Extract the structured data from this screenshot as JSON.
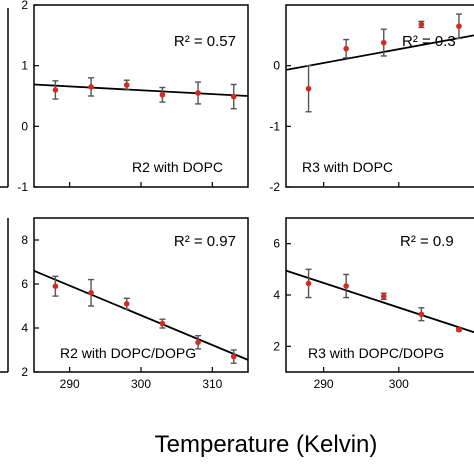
{
  "chart_data": [
    {
      "type": "scatter",
      "label": "R2 with DOPC",
      "r2_text": "R² = 0.57",
      "x": [
        288,
        293,
        298,
        303,
        308,
        313
      ],
      "y": [
        0.6,
        0.65,
        0.68,
        0.52,
        0.55,
        0.49
      ],
      "y_err": [
        0.15,
        0.15,
        0.08,
        0.12,
        0.18,
        0.2
      ],
      "fit": {
        "x": [
          285,
          315
        ],
        "y": [
          0.69,
          0.5
        ]
      },
      "xlim": [
        285,
        315
      ],
      "ylim": [
        -1,
        2
      ],
      "xticks": [
        290,
        300,
        310
      ],
      "yticks": [
        -1,
        0,
        1,
        2
      ],
      "show_xticklabels": false
    },
    {
      "type": "scatter",
      "label": "R3 with DOPC",
      "r2_text": "R² = 0.3",
      "x": [
        288,
        293,
        298,
        303,
        308
      ],
      "y": [
        -0.38,
        0.28,
        0.38,
        0.68,
        0.65
      ],
      "y_err": [
        0.38,
        0.15,
        0.22,
        0.05,
        0.2
      ],
      "fit": {
        "x": [
          285,
          310
        ],
        "y": [
          -0.07,
          0.5
        ]
      },
      "xlim": [
        285,
        310
      ],
      "ylim": [
        -2,
        1
      ],
      "xticks": [
        290,
        300
      ],
      "yticks": [
        -2,
        -1,
        0
      ],
      "show_xticklabels": false
    },
    {
      "type": "scatter",
      "label": "R2 with DOPC/DOPG",
      "r2_text": "R² = 0.97",
      "x": [
        288,
        293,
        298,
        303,
        308,
        313
      ],
      "y": [
        5.9,
        5.6,
        5.1,
        4.2,
        3.35,
        2.7
      ],
      "y_err": [
        0.45,
        0.6,
        0.25,
        0.2,
        0.3,
        0.3
      ],
      "fit": {
        "x": [
          285,
          315
        ],
        "y": [
          6.6,
          2.55
        ]
      },
      "xlim": [
        285,
        315
      ],
      "ylim": [
        2,
        9
      ],
      "xticks": [
        290,
        300,
        310
      ],
      "yticks": [
        2,
        4,
        6,
        8
      ],
      "show_xticklabels": true
    },
    {
      "type": "scatter",
      "label": "R3 with DOPC/DOPG",
      "r2_text": "R² = 0.9",
      "x": [
        288,
        293,
        298,
        303,
        308
      ],
      "y": [
        4.45,
        4.35,
        3.95,
        3.25,
        2.65
      ],
      "y_err": [
        0.55,
        0.45,
        0.12,
        0.25,
        0.05
      ],
      "fit": {
        "x": [
          285,
          310
        ],
        "y": [
          4.95,
          2.55
        ]
      },
      "xlim": [
        285,
        310
      ],
      "ylim": [
        1,
        7
      ],
      "xticks": [
        290,
        300
      ],
      "yticks": [
        2,
        4,
        6
      ],
      "show_xticklabels": true
    }
  ],
  "xlabel": "Temperature (Kelvin)",
  "colors": {
    "point": "#d42a1f",
    "errorbar": "#555555",
    "fit": "#000000",
    "axis": "#000000"
  }
}
